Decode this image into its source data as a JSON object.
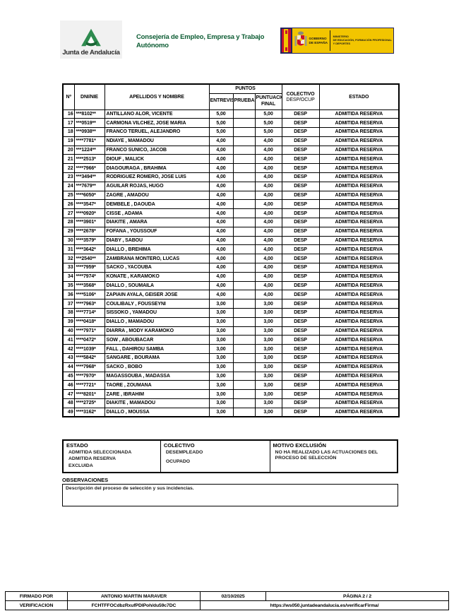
{
  "header": {
    "junta_logo_text": "Junta de Andalucía",
    "consejeria": "Consejería de Empleo, Empresa y Trabajo Autónomo",
    "gobierno_lines": [
      "GOBIERNO",
      "DE ESPAÑA"
    ],
    "ministerio_lines": [
      "MINISTERIO",
      "DE EDUCACIÓN, FORMACIÓN PROFESIONAL",
      "Y DEPORTES"
    ]
  },
  "colors": {
    "junta_green": "#2e8b4f",
    "consejeria_green": "#0c5c33",
    "spain_yellow": "#f2c500",
    "spain_navy": "#23235f",
    "spain_red": "#c8102e"
  },
  "table": {
    "headers": {
      "num": "Nº",
      "dni": "DNI/NIE",
      "nombre": "APELLIDOS Y NOMBRE",
      "puntos": "PUNTOS",
      "entrevista": "ENTREVISTA",
      "prueba": "PRUEBA",
      "puntuacion_final": "PUNTUACIÓN FINAL",
      "colectivo": "COLECTIVO",
      "colectivo_sub": "DESP/OCUP",
      "estado": "ESTADO"
    },
    "column_order": [
      "num",
      "dni",
      "nombre",
      "entrevista",
      "prueba",
      "final",
      "colectivo",
      "estado"
    ],
    "rows": [
      [
        "16",
        "***8102**",
        "ANTILLANO ALOR, VICENTE",
        "5,00",
        "",
        "5,00",
        "DESP",
        "ADMITIDA RESERVA"
      ],
      [
        "17",
        "***0519**",
        "CARMONA VILCHEZ, JOSE MARIA",
        "5,00",
        "",
        "5,00",
        "DESP",
        "ADMITIDA RESERVA"
      ],
      [
        "18",
        "***0938**",
        "FRANCO TERUEL, ALEJANDRO",
        "5,00",
        "",
        "5,00",
        "DESP",
        "ADMITIDA RESERVA"
      ],
      [
        "19",
        "****7781*",
        "NDIAYE , MAMADOU",
        "4,00",
        "",
        "4,00",
        "DESP",
        "ADMITIDA RESERVA"
      ],
      [
        "20",
        "***1224**",
        "FRANCO SUNICO, JACOB",
        "4,00",
        "",
        "4,00",
        "DESP",
        "ADMITIDA RESERVA"
      ],
      [
        "21",
        "****2513*",
        "DIOUF , MALICK",
        "4,00",
        "",
        "4,00",
        "DESP",
        "ADMITIDA RESERVA"
      ],
      [
        "22",
        "****7966*",
        "DIAGOURAGA , BRAHIMA",
        "4,00",
        "",
        "4,00",
        "DESP",
        "ADMITIDA RESERVA"
      ],
      [
        "23",
        "***3494**",
        "RODRIGUEZ ROMERO, JOSE LUIS",
        "4,00",
        "",
        "4,00",
        "DESP",
        "ADMITIDA RESERVA"
      ],
      [
        "24",
        "***7679**",
        "AGUILAR ROJAS, HUGO",
        "4,00",
        "",
        "4,00",
        "DESP",
        "ADMITIDA RESERVA"
      ],
      [
        "25",
        "****6050*",
        "ZAGRE , AMADOU",
        "4,00",
        "",
        "4,00",
        "DESP",
        "ADMITIDA RESERVA"
      ],
      [
        "26",
        "****3547*",
        "DEMBELE , DAOUDA",
        "4,00",
        "",
        "4,00",
        "DESP",
        "ADMITIDA RESERVA"
      ],
      [
        "27",
        "****0920*",
        "CISSE , ADAMA",
        "4,00",
        "",
        "4,00",
        "DESP",
        "ADMITIDA RESERVA"
      ],
      [
        "28",
        "****3901*",
        "DIAKITE , AMARA",
        "4,00",
        "",
        "4,00",
        "DESP",
        "ADMITIDA RESERVA"
      ],
      [
        "29",
        "****2678*",
        "FOFANA , YOUSSOUF",
        "4,00",
        "",
        "4,00",
        "DESP",
        "ADMITIDA RESERVA"
      ],
      [
        "30",
        "****3579*",
        "DIABY , SABOU",
        "4,00",
        "",
        "4,00",
        "DESP",
        "ADMITIDA RESERVA"
      ],
      [
        "31",
        "****3642*",
        "DIALLO , BREHIMA",
        "4,00",
        "",
        "4,00",
        "DESP",
        "ADMITIDA RESERVA"
      ],
      [
        "32",
        "***2540**",
        "ZAMBRANA MONTERO, LUCAS",
        "4,00",
        "",
        "4,00",
        "DESP",
        "ADMITIDA RESERVA"
      ],
      [
        "33",
        "****7959*",
        "SACKO , YACOUBA",
        "4,00",
        "",
        "4,00",
        "DESP",
        "ADMITIDA RESERVA"
      ],
      [
        "34",
        "****7974*",
        "KONATE , KARAMOKO",
        "4,00",
        "",
        "4,00",
        "DESP",
        "ADMITIDA RESERVA"
      ],
      [
        "35",
        "****3568*",
        "DIALLO , SOUMAILA",
        "4,00",
        "",
        "4,00",
        "DESP",
        "ADMITIDA RESERVA"
      ],
      [
        "36",
        "****5106*",
        "ZAPIAIN AYALA, GEISER JOSE",
        "4,00",
        "",
        "4,00",
        "DESP",
        "ADMITIDA RESERVA"
      ],
      [
        "37",
        "****7963*",
        "COULIBALY , FOUSSEYNI",
        "3,00",
        "",
        "3,00",
        "DESP",
        "ADMITIDA RESERVA"
      ],
      [
        "38",
        "****7714*",
        "SISSOKO , YAMADOU",
        "3,00",
        "",
        "3,00",
        "DESP",
        "ADMITIDA RESERVA"
      ],
      [
        "39",
        "****0418*",
        "DIALLO , MAMADOU",
        "3,00",
        "",
        "3,00",
        "DESP",
        "ADMITIDA RESERVA"
      ],
      [
        "40",
        "****7971*",
        "DIARRA , MODY KARAMOKO",
        "3,00",
        "",
        "3,00",
        "DESP",
        "ADMITIDA RESERVA"
      ],
      [
        "41",
        "****0472*",
        "SOW , ABOUBACAR",
        "3,00",
        "",
        "3,00",
        "DESP",
        "ADMITIDA RESERVA"
      ],
      [
        "42",
        "****1039*",
        "FALL , DAHIROU SAMBA",
        "3,00",
        "",
        "3,00",
        "DESP",
        "ADMITIDA RESERVA"
      ],
      [
        "43",
        "****5842*",
        "SANGARE , BOURAMA",
        "3,00",
        "",
        "3,00",
        "DESP",
        "ADMITIDA RESERVA"
      ],
      [
        "44",
        "****7968*",
        "SACKO , BOBO",
        "3,00",
        "",
        "3,00",
        "DESP",
        "ADMITIDA RESERVA"
      ],
      [
        "45",
        "****7970*",
        "MAGASSOUBA , MADASSA",
        "3,00",
        "",
        "3,00",
        "DESP",
        "ADMITIDA RESERVA"
      ],
      [
        "46",
        "****7721*",
        "TAORE , ZOUMANA",
        "3,00",
        "",
        "3,00",
        "DESP",
        "ADMITIDA RESERVA"
      ],
      [
        "47",
        "****8201*",
        "ZARE , IBRAHIM",
        "3,00",
        "",
        "3,00",
        "DESP",
        "ADMITIDA RESERVA"
      ],
      [
        "48",
        "****2725*",
        "DIAKITE , MAMADOU",
        "3,00",
        "",
        "3,00",
        "DESP",
        "ADMITIDA RESERVA"
      ],
      [
        "49",
        "****3162*",
        "DIALLO , MOUSSA",
        "3,00",
        "",
        "3,00",
        "DESP",
        "ADMITIDA RESERVA"
      ]
    ]
  },
  "legend": {
    "estado": {
      "title": "ESTADO",
      "items": [
        "ADMITIDA SELECCIONADA",
        "ADMITIDA RESERVA",
        "EXCLUIDA"
      ]
    },
    "colectivo": {
      "title": "COLECTIVO",
      "items": [
        "DESEMPLEADO",
        "OCUPADO"
      ]
    },
    "motivo": {
      "title": "MOTIVO EXCLUSIÓN",
      "items": [
        "NO HA REALIZADO LAS ACTUACIONES DEL PROCESO DE SELECCIÓN"
      ]
    }
  },
  "observaciones": {
    "title": "OBSERVACIONES",
    "text": "Descripción del proceso de selección y sus incidencias."
  },
  "footer": {
    "firmado_label": "FIRMADO POR",
    "firmado_value": "ANTONIO MARTIN MARAVER",
    "fecha": "02/10/2025",
    "pagina": "PÁGINA 2 / 2",
    "verificacion_label": "VERIFICACION",
    "verificacion_value": "FCHTFFOCdbzRxufPDIPoh/du59c7DC",
    "url": "https://ws050.juntadeandalucia.es/verificarFirma/"
  }
}
